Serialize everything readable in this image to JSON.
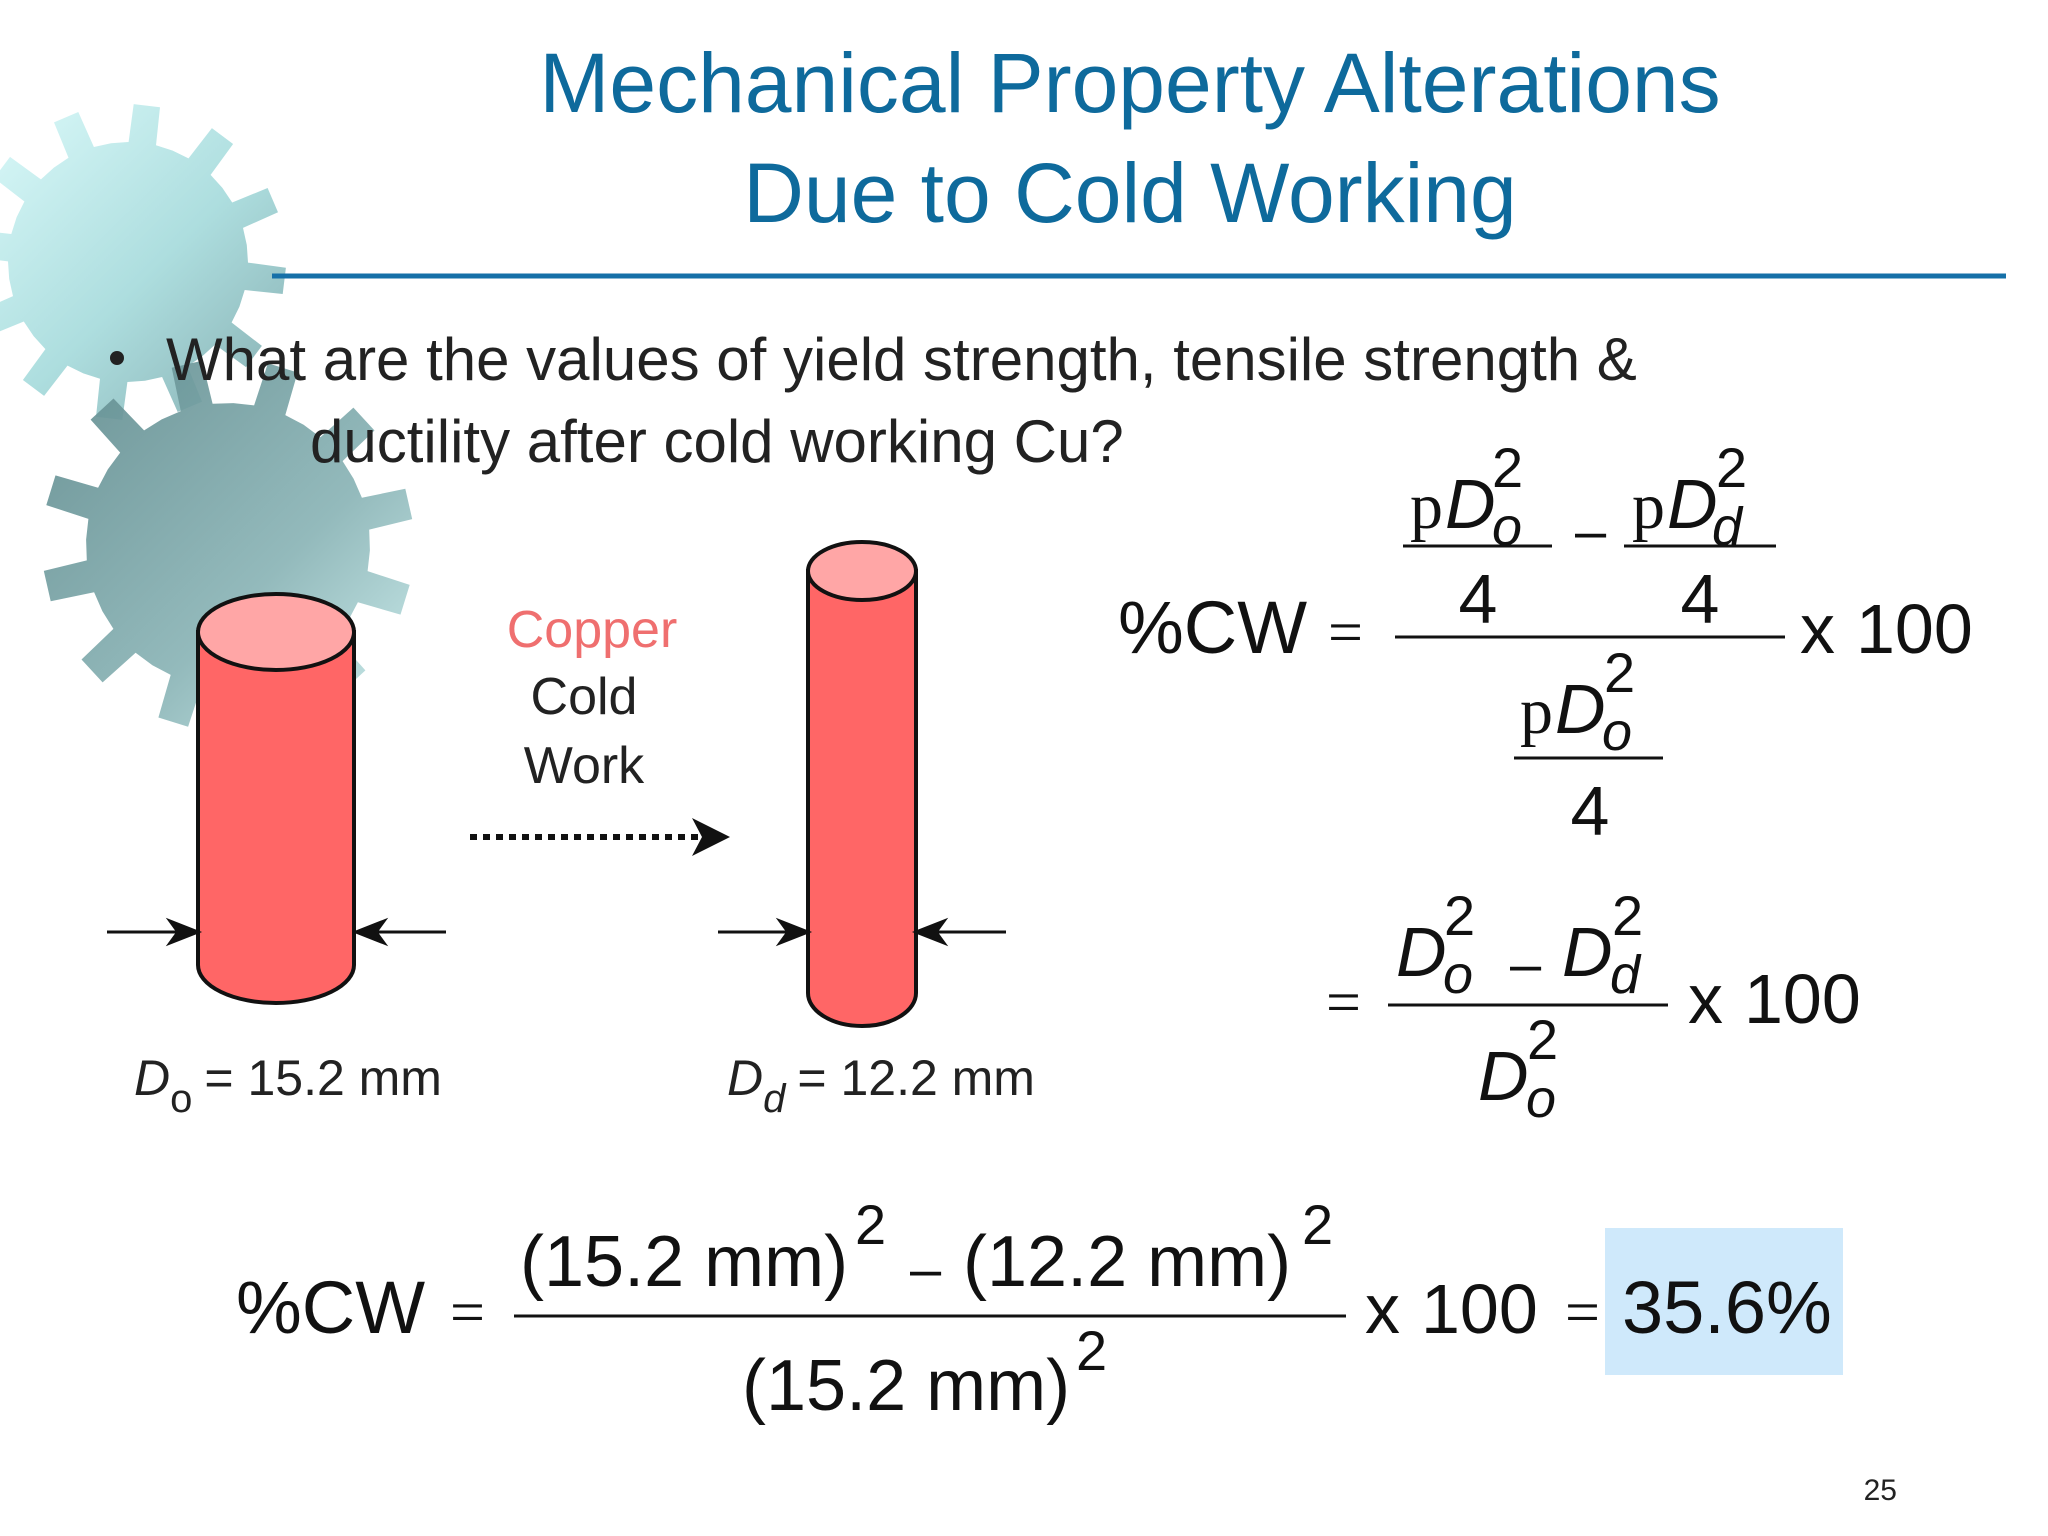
{
  "slide": {
    "title_line1": "Mechanical Property Alterations",
    "title_line2": "Due to Cold Working",
    "bullet_line1": "What are the values of yield strength, tensile strength &",
    "bullet_line2": "ductility after cold working Cu?",
    "page_number": "25"
  },
  "diagram": {
    "process_material": "Copper",
    "process_line2": "Cold",
    "process_line3": "Work",
    "original_symbol": "D",
    "original_subscript": "o",
    "original_value": "= 15.2 mm",
    "drawn_symbol": "D",
    "drawn_subscript": "d",
    "drawn_value": "= 12.2 mm"
  },
  "formula1": {
    "lhs": "%CW",
    "eq": "=",
    "pi": "p",
    "D": "D",
    "sub_o": "o",
    "sub_d": "d",
    "sup": "2",
    "four": "4",
    "minus": "–",
    "times": "x",
    "hundred": "100"
  },
  "formula3": {
    "lhs": "%CW",
    "eq": "=",
    "num_a": "(15.2 mm)",
    "num_b": "(12.2 mm)",
    "den": "(15.2 mm)",
    "sup": "2",
    "minus": "–",
    "times": "x",
    "hundred": "100",
    "eq2": "=",
    "result": "35.6%"
  },
  "colors": {
    "title": "#0e6a9c",
    "rule": "#1670a8",
    "cylinder_body": "#ff6666",
    "cylinder_top": "#ffa6a6",
    "copper_label": "#ef6f6f",
    "result_highlight": "#cfe9fb",
    "gear_light": "#c6f0f0",
    "gear_dark": "#6f9b9e"
  }
}
